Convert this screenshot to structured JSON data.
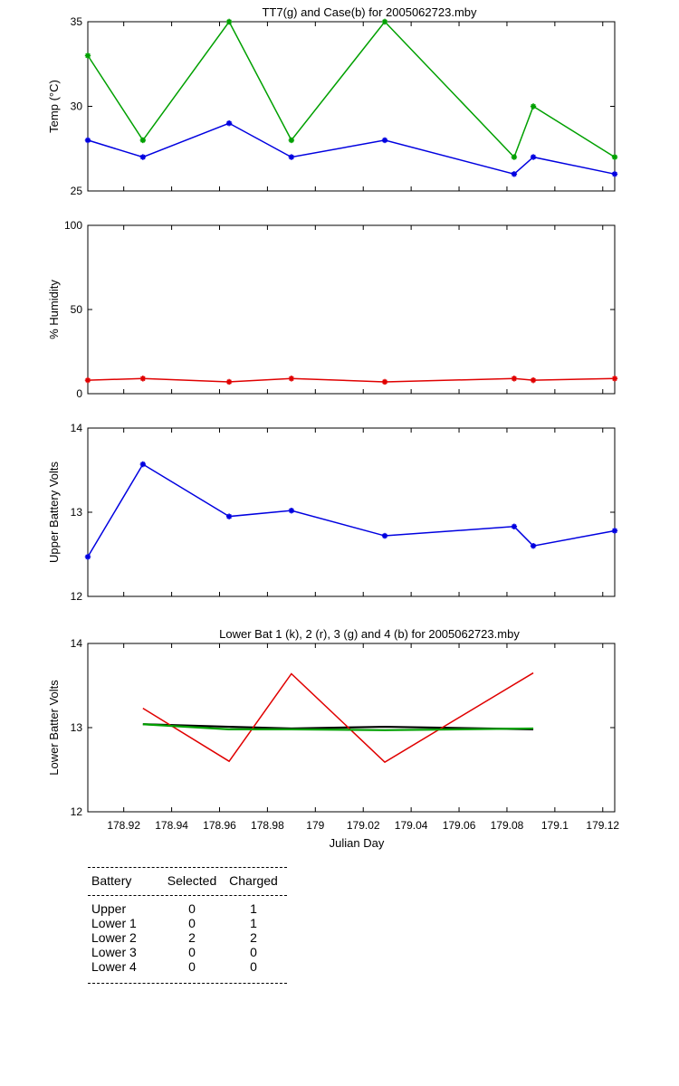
{
  "chart_data": [
    {
      "type": "line",
      "title": "TT7(g) and Case(b) for 2005062723.mby",
      "xlabel": "",
      "ylabel": "Temp  (°C)",
      "xlim": [
        178.905,
        179.125
      ],
      "ylim": [
        25,
        35
      ],
      "yticks": [
        25,
        30,
        35
      ],
      "grid": false,
      "series": [
        {
          "color": "#00a000",
          "marker": "*",
          "x": [
            178.905,
            178.928,
            178.964,
            178.99,
            179.029,
            179.083,
            179.091,
            179.125
          ],
          "y": [
            33,
            28,
            35,
            28,
            35,
            27,
            30,
            27
          ]
        },
        {
          "color": "#0000e0",
          "marker": "*",
          "x": [
            178.905,
            178.928,
            178.964,
            178.99,
            179.029,
            179.083,
            179.091,
            179.125
          ],
          "y": [
            28,
            27,
            29,
            27,
            28,
            26,
            27,
            26
          ]
        }
      ]
    },
    {
      "type": "line",
      "title": "",
      "xlabel": "",
      "ylabel": "% Humidity",
      "xlim": [
        178.905,
        179.125
      ],
      "ylim": [
        0,
        100
      ],
      "yticks": [
        0,
        50,
        100
      ],
      "grid": false,
      "series": [
        {
          "color": "#e00000",
          "marker": "*",
          "x": [
            178.905,
            178.928,
            178.964,
            178.99,
            179.029,
            179.083,
            179.091,
            179.125
          ],
          "y": [
            8,
            9,
            7,
            9,
            7,
            9,
            8,
            9
          ]
        }
      ]
    },
    {
      "type": "line",
      "title": "",
      "xlabel": "",
      "ylabel": "Upper Battery Volts",
      "xlim": [
        178.905,
        179.125
      ],
      "ylim": [
        12,
        14
      ],
      "yticks": [
        12,
        13,
        14
      ],
      "grid": false,
      "series": [
        {
          "color": "#0000e0",
          "marker": "*",
          "x": [
            178.905,
            178.928,
            178.964,
            178.99,
            179.029,
            179.083,
            179.091,
            179.125
          ],
          "y": [
            12.47,
            13.57,
            12.95,
            13.02,
            12.72,
            12.83,
            12.6,
            12.78
          ]
        }
      ]
    },
    {
      "type": "line",
      "title": "Lower Bat 1 (k), 2 (r), 3 (g) and 4 (b) for 2005062723.mby",
      "xlabel": "Julian Day",
      "ylabel": "Lower Batter Volts",
      "xlim": [
        178.905,
        179.125
      ],
      "ylim": [
        12,
        14
      ],
      "yticks": [
        12,
        13,
        14
      ],
      "xticks": [
        "178.92",
        "178.94",
        "178.96",
        "178.98",
        "179",
        "179.02",
        "179.04",
        "179.06",
        "179.08",
        "179.1",
        "179.12"
      ],
      "xtick_values": [
        178.92,
        178.94,
        178.96,
        178.98,
        179.0,
        179.02,
        179.04,
        179.06,
        179.08,
        179.1,
        179.12
      ],
      "grid": false,
      "series": [
        {
          "color": "#000000",
          "marker": "",
          "x": [
            178.928,
            178.964,
            178.99,
            179.029,
            179.091
          ],
          "y": [
            13.04,
            13.01,
            12.99,
            13.01,
            12.98
          ]
        },
        {
          "color": "#e00000",
          "marker": "",
          "x": [
            178.928,
            178.964,
            178.99,
            179.029,
            179.091
          ],
          "y": [
            13.23,
            12.6,
            13.64,
            12.59,
            13.65
          ]
        },
        {
          "color": "#00a000",
          "marker": "",
          "x": [
            178.928,
            178.964,
            178.99,
            179.029,
            179.091
          ],
          "y": [
            13.04,
            12.98,
            12.98,
            12.97,
            12.99
          ]
        }
      ]
    }
  ],
  "table": {
    "headers": [
      "Battery",
      "Selected",
      "Charged"
    ],
    "rows": [
      [
        "Upper",
        "0",
        "1"
      ],
      [
        "Lower 1",
        "0",
        "1"
      ],
      [
        "Lower 2",
        "2",
        "2"
      ],
      [
        "Lower 3",
        "0",
        "0"
      ],
      [
        "Lower 4",
        "0",
        "0"
      ]
    ]
  }
}
